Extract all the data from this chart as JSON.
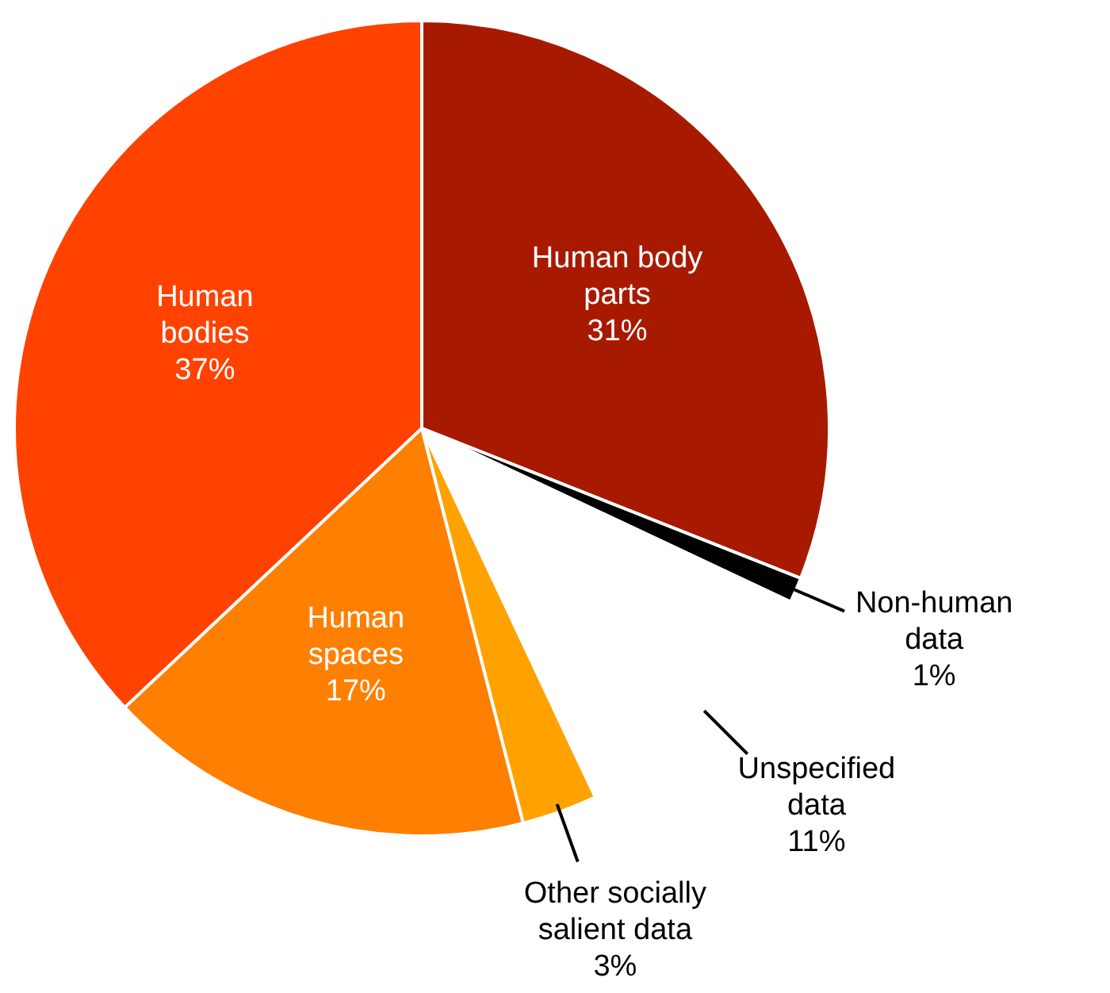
{
  "chart_data": {
    "type": "pie",
    "categories": [
      "Human body parts",
      "Non-human data",
      "Unspecified data",
      "Other socially salient data",
      "Human spaces",
      "Human bodies"
    ],
    "values": [
      31,
      1,
      11,
      3,
      17,
      37
    ],
    "value_labels": [
      "31%",
      "1%",
      "11%",
      "3%",
      "17%",
      "37%"
    ],
    "colors": [
      "#a81a00",
      "#000000",
      "#ffffff",
      "#ffa200",
      "#ff7f00",
      "#ff4200"
    ],
    "legend": false
  }
}
